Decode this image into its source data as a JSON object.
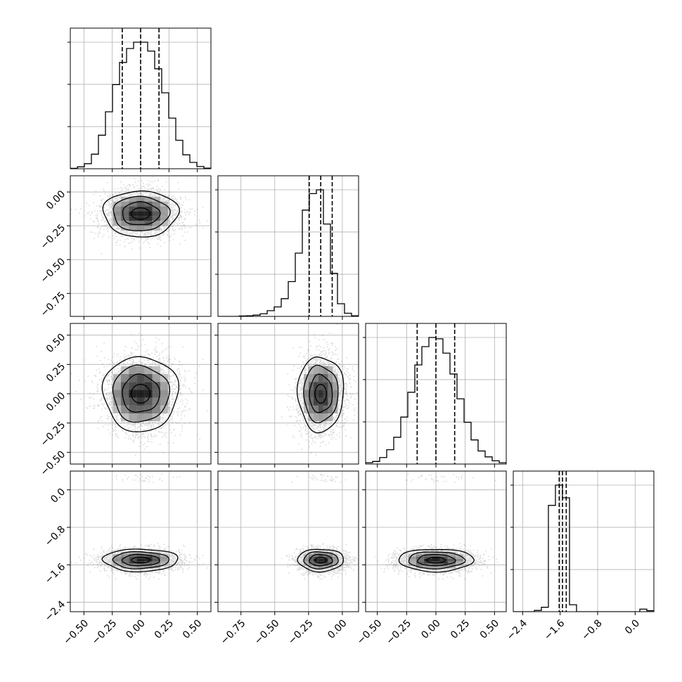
{
  "chart_data": {
    "type": "corner",
    "grid": true,
    "variables": [
      {
        "range": [
          -0.62,
          0.62
        ],
        "ticks": [
          -0.5,
          -0.25,
          0.0,
          0.25,
          0.5
        ],
        "tick_labels": [
          "−0.50",
          "−0.25",
          "0.00",
          "0.25",
          "0.50"
        ],
        "center": 0.0,
        "sigma": 0.165,
        "quantiles": [
          -0.162,
          0.0,
          0.162
        ],
        "hist_bins": 20,
        "hist": [
          0.003,
          0.015,
          0.04,
          0.115,
          0.265,
          0.45,
          0.665,
          0.84,
          0.95,
          1.0,
          1.0,
          0.93,
          0.79,
          0.6,
          0.4,
          0.225,
          0.11,
          0.05,
          0.018,
          0.005
        ]
      },
      {
        "range": [
          -0.92,
          0.12
        ],
        "ticks": [
          -0.75,
          -0.5,
          -0.25,
          0.0
        ],
        "tick_labels": [
          "−0.75",
          "−0.50",
          "−0.25",
          "0.00"
        ],
        "center": -0.16,
        "sigma": 0.085,
        "quantiles": [
          -0.245,
          -0.16,
          -0.075
        ],
        "hist_bins": 20,
        "hist": [
          0.0,
          0.0,
          0.0,
          0.003,
          0.005,
          0.01,
          0.02,
          0.045,
          0.075,
          0.14,
          0.275,
          0.5,
          0.84,
          0.97,
          1.0,
          0.73,
          0.34,
          0.1,
          0.025,
          0.005
        ]
      },
      {
        "range": [
          -0.6,
          0.6
        ],
        "ticks": [
          -0.5,
          -0.25,
          0.0,
          0.25,
          0.5
        ],
        "tick_labels": [
          "−0.50",
          "−0.25",
          "0.00",
          "0.25",
          "0.50"
        ],
        "center": 0.0,
        "sigma": 0.16,
        "quantiles": [
          -0.16,
          0.0,
          0.16
        ],
        "hist_bins": 20,
        "hist": [
          0.01,
          0.02,
          0.05,
          0.11,
          0.205,
          0.36,
          0.55,
          0.76,
          0.9,
          0.97,
          0.96,
          0.85,
          0.69,
          0.5,
          0.32,
          0.185,
          0.1,
          0.055,
          0.025,
          0.01
        ]
      },
      {
        "range": [
          -2.6,
          0.4
        ],
        "ticks": [
          -2.4,
          -1.6,
          -0.8,
          0.0
        ],
        "tick_labels": [
          "−2.4",
          "−1.6",
          "−0.8",
          "0.0"
        ],
        "center": -1.5,
        "sigma": 0.12,
        "quantiles": [
          -1.62,
          -1.55,
          -1.47
        ],
        "outlier_value": 0.25,
        "outlier_fraction": 0.012,
        "hist_bins": 20,
        "hist": [
          0.0,
          0.0,
          0.0,
          0.01,
          0.035,
          0.84,
          1.0,
          0.9,
          0.055,
          0.0,
          0.0,
          0.0,
          0.0,
          0.0,
          0.0,
          0.0,
          0.0,
          0.0,
          0.02,
          0.008
        ]
      }
    ],
    "contour_levels_sigma": [
      0.5,
      1.0,
      1.5,
      2.0
    ],
    "tick_rotation_deg": 45
  }
}
